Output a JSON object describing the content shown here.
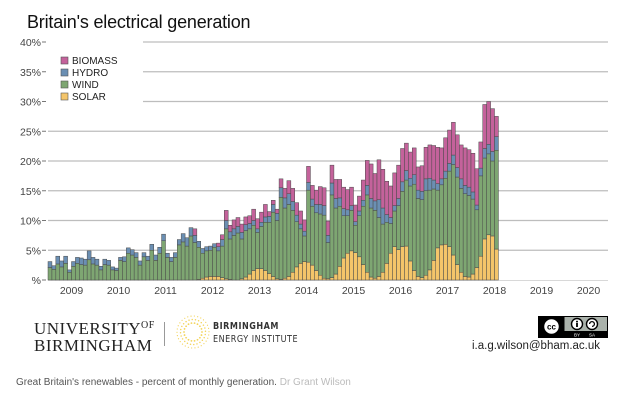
{
  "title": "Britain's electrical generation",
  "chart_data": {
    "type": "bar",
    "stacked": true,
    "title": "Britain's electrical generation",
    "xlabel": "",
    "ylabel": "",
    "ylim": [
      0,
      40
    ],
    "yticks": [
      "%",
      "5%",
      "10%",
      "15%",
      "20%",
      "25%",
      "30%",
      "35%",
      "40%"
    ],
    "x_start": "2009-01",
    "x_range_years": [
      2009,
      2020
    ],
    "xtick_labels": [
      "2009",
      "2010",
      "2011",
      "2012",
      "2013",
      "2014",
      "2015",
      "2016",
      "2017",
      "2018",
      "2019",
      "2020"
    ],
    "grid": true,
    "legend_position": "top-left",
    "colors": {
      "BIOMASS": "#c4629b",
      "HYDRO": "#6b8fb3",
      "WIND": "#7ea672",
      "SOLAR": "#f4c56a"
    },
    "series": [
      {
        "name": "SOLAR",
        "values": [
          0,
          0,
          0,
          0,
          0,
          0,
          0,
          0,
          0,
          0,
          0,
          0,
          0,
          0,
          0,
          0,
          0,
          0,
          0,
          0,
          0,
          0,
          0,
          0,
          0,
          0,
          0,
          0,
          0,
          0,
          0,
          0,
          0,
          0,
          0,
          0,
          0,
          0,
          0.1,
          0.3,
          0.5,
          0.6,
          0.6,
          0.6,
          0.4,
          0.2,
          0.1,
          0,
          0,
          0.2,
          0.5,
          1.0,
          1.6,
          1.9,
          1.9,
          1.6,
          1.1,
          0.6,
          0.2,
          0.1,
          0.3,
          0.6,
          1.3,
          2.2,
          2.8,
          3.1,
          3.0,
          2.5,
          1.6,
          0.8,
          0.3,
          0.2,
          0.4,
          1.0,
          2.3,
          3.7,
          4.5,
          4.9,
          4.6,
          3.9,
          2.6,
          1.3,
          0.5,
          0.3,
          0.6,
          1.3,
          2.8,
          4.5,
          5.6,
          5.1,
          5.6,
          5.7,
          3.2,
          1.6,
          0.6,
          0.4,
          0.8,
          1.7,
          3.3,
          5.4,
          5.9,
          6.0,
          5.6,
          4.2,
          2.6,
          1.3,
          0.6,
          0.5,
          1.0,
          2.1,
          4.0,
          6.9,
          7.6,
          7.4,
          5.2,
          3.6,
          1.7,
          0.4
        ]
      },
      {
        "name": "WIND",
        "values": [
          2.1,
          1.8,
          2.7,
          2.2,
          2.8,
          1.3,
          2.3,
          2.8,
          2.6,
          2.5,
          3.4,
          2.7,
          2.5,
          1.7,
          2.6,
          2.5,
          1.7,
          1.6,
          3.3,
          3.1,
          4.5,
          4.2,
          3.8,
          2.5,
          3.9,
          3.3,
          5.0,
          3.3,
          4.5,
          6.6,
          3.8,
          3.1,
          3.8,
          5.9,
          6.4,
          5.7,
          7.4,
          6.3,
          5.4,
          4.2,
          4.4,
          4.4,
          4.9,
          4.3,
          5.3,
          8.4,
          6.8,
          7.5,
          7.9,
          6.7,
          7.8,
          7.6,
          7.6,
          6.1,
          7.1,
          8.1,
          8.6,
          10.8,
          9.8,
          13.8,
          11.8,
          12.1,
          10.4,
          7.6,
          5.8,
          4.3,
          12.1,
          9.9,
          9.7,
          10.3,
          10.6,
          6.1,
          13.9,
          11.1,
          10.1,
          7.1,
          6.3,
          6.8,
          4.6,
          6.9,
          9.8,
          13.0,
          11.6,
          11.4,
          9.9,
          8.1,
          6.9,
          5.0,
          6.0,
          7.4,
          9.3,
          11.1,
          12.6,
          14.5,
          13.1,
          13.1,
          14.2,
          13.4,
          12.0,
          9.7,
          10.1,
          11.1,
          12.7,
          15.2,
          14.7,
          14.1,
          13.9,
          13.7,
          12.6,
          9.7,
          13.5,
          13.6,
          13.6,
          12.6,
          16.6
        ]
      },
      {
        "name": "HYDRO",
        "values": [
          1.0,
          0.6,
          1.3,
          1.0,
          1.2,
          0.4,
          0.8,
          1.0,
          1.1,
          1.0,
          1.5,
          1.1,
          1.0,
          0.6,
          0.9,
          0.8,
          0.5,
          0.4,
          0.5,
          0.8,
          0.9,
          0.9,
          0.8,
          0.7,
          0.7,
          0.7,
          1.0,
          0.9,
          1.0,
          1.1,
          0.7,
          0.7,
          0.8,
          0.9,
          1.4,
          1.4,
          1.4,
          1.2,
          1.0,
          0.8,
          0.7,
          0.7,
          0.6,
          0.7,
          1.1,
          1.4,
          1.2,
          1.1,
          1.1,
          1.1,
          1.0,
          0.9,
          0.8,
          0.6,
          0.7,
          0.9,
          1.0,
          1.3,
          1.2,
          1.6,
          1.7,
          1.8,
          1.5,
          1.1,
          0.8,
          0.8,
          1.3,
          1.2,
          1.4,
          1.6,
          1.6,
          1.2,
          2.0,
          1.6,
          1.4,
          1.2,
          1.0,
          0.8,
          0.6,
          0.8,
          1.0,
          1.6,
          1.6,
          1.6,
          3.0,
          2.7,
          1.3,
          1.0,
          0.9,
          1.2,
          1.6,
          1.6,
          1.3,
          1.6,
          1.4,
          1.4,
          2.0,
          2.0,
          1.5,
          1.1,
          1.0,
          1.2,
          1.3,
          1.6,
          1.6,
          1.6,
          1.4,
          1.4,
          1.2,
          0.8,
          1.3,
          1.6,
          1.6,
          1.6,
          2.3
        ]
      },
      {
        "name": "BIOMASS",
        "values": [
          0,
          0,
          0,
          0,
          0,
          0,
          0,
          0,
          0,
          0,
          0,
          0,
          0,
          0,
          0,
          0,
          0,
          0,
          0,
          0,
          0,
          0,
          0,
          0,
          0,
          0,
          0,
          0,
          0,
          0,
          0,
          0,
          0,
          0,
          0,
          0,
          0,
          1.1,
          0,
          0,
          0,
          0,
          0,
          0.6,
          0.8,
          1.7,
          1.1,
          1.5,
          1.5,
          1.4,
          1.3,
          1.3,
          1.9,
          1.7,
          1.7,
          2.1,
          0.8,
          0.7,
          0.7,
          1.5,
          1.6,
          2.2,
          2.2,
          2.1,
          2.2,
          1.9,
          2.7,
          2.3,
          2.4,
          3.0,
          3.0,
          2.4,
          3.0,
          3.2,
          3.1,
          3.6,
          3.4,
          3.1,
          2.8,
          2.5,
          3.4,
          4.2,
          5.8,
          4.6,
          6.7,
          6.5,
          5.6,
          5.3,
          5.5,
          5.6,
          5.6,
          4.6,
          4.4,
          4.5,
          3.9,
          4.3,
          5.3,
          5.6,
          5.8,
          6.1,
          5.2,
          5.6,
          5.6,
          5.5,
          5.5,
          5.7,
          6.3,
          6.3,
          6.5,
          6.1,
          4.4,
          7.4,
          7.2,
          7.2,
          3.4
        ]
      }
    ]
  },
  "legend": [
    {
      "label": "BIOMASS",
      "color": "#c4629b"
    },
    {
      "label": "HYDRO",
      "color": "#6b8fb3"
    },
    {
      "label": "WIND",
      "color": "#7ea672"
    },
    {
      "label": "SOLAR",
      "color": "#f4c56a"
    }
  ],
  "footer": {
    "uob_line1": "UNIVERSITY",
    "uob_of": "OF",
    "uob_line2": "BIRMINGHAM",
    "bei_line1": "BIRMINGHAM",
    "bei_line2": "ENERGY INSTITUTE",
    "license_icon": "cc-by-sa-icon",
    "license_by": "BY",
    "license_sa": "SA",
    "email": "i.a.g.wilson@bham.ac.uk"
  },
  "caption": {
    "text": "Great Britain's renewables - percent of monthly generation.",
    "author": "Dr Grant Wilson"
  }
}
